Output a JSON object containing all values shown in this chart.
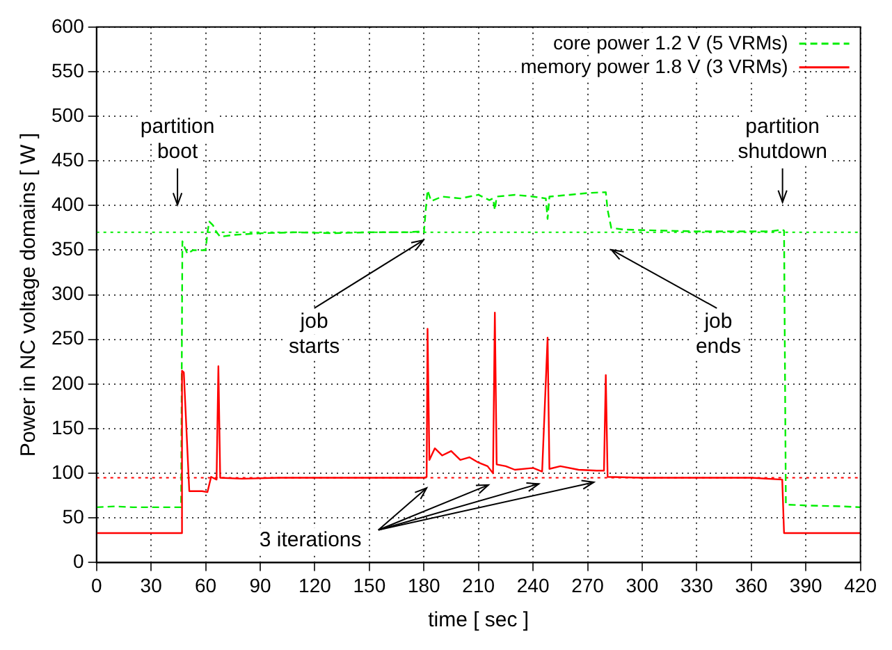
{
  "chart_data": {
    "type": "line",
    "xlabel": "time [ sec ]",
    "ylabel": "Power in NC voltage domains [ W ]",
    "xlim": [
      0,
      420
    ],
    "xticks": [
      0,
      30,
      60,
      90,
      120,
      150,
      180,
      210,
      240,
      270,
      300,
      330,
      360,
      390,
      420
    ],
    "ylim": [
      0,
      600
    ],
    "yticks": [
      0,
      50,
      100,
      150,
      200,
      250,
      300,
      350,
      400,
      450,
      500,
      550,
      600
    ],
    "grid": true,
    "legend": "top right",
    "marker": "none",
    "series": [
      {
        "name": "core power 1.2 V (5 VRMs)",
        "color": "#00ee00",
        "line_style": "dashed",
        "x": [
          0,
          10,
          20,
          30,
          40,
          46.5,
          47.2,
          48,
          50,
          53,
          57,
          60,
          61,
          62,
          64,
          66,
          68,
          75,
          90,
          110,
          130,
          150,
          170,
          179,
          180,
          181,
          182,
          184,
          190,
          200,
          210,
          216,
          218,
          219,
          220,
          230,
          240,
          247,
          248,
          249,
          260,
          270,
          280,
          281,
          283,
          290,
          310,
          330,
          350,
          370,
          377,
          378,
          379,
          390,
          410,
          420
        ],
        "values": [
          62,
          63,
          62,
          62,
          62,
          62,
          360,
          355,
          346,
          350,
          350,
          350,
          370,
          382,
          378,
          370,
          365,
          367,
          369,
          370,
          369,
          370,
          370,
          371,
          370,
          395,
          417,
          405,
          410,
          408,
          412,
          406,
          408,
          395,
          410,
          412,
          410,
          408,
          385,
          410,
          412,
          414,
          415,
          395,
          375,
          373,
          372,
          371,
          371,
          371,
          373,
          372,
          65,
          64,
          63,
          62
        ]
      },
      {
        "name": "memory power 1.8 V (3 VRMs)",
        "color": "#ff0000",
        "line_style": "solid",
        "x": [
          0,
          20,
          40,
          46.5,
          47,
          48,
          51,
          58,
          61,
          63,
          66,
          67,
          68,
          80,
          100,
          120,
          140,
          160,
          180,
          181.5,
          182,
          183,
          186,
          190,
          195,
          200,
          205,
          210,
          215,
          218,
          219,
          220,
          225,
          230,
          240,
          245,
          248,
          249,
          255,
          265,
          275,
          279,
          280,
          281,
          300,
          330,
          360,
          377,
          378,
          400,
          420
        ],
        "values": [
          33,
          33,
          33,
          33,
          215,
          213,
          80,
          80,
          79,
          96,
          93,
          220,
          95,
          94,
          95,
          95,
          95,
          95,
          95,
          96,
          262,
          115,
          128,
          120,
          125,
          115,
          118,
          112,
          108,
          100,
          280,
          110,
          108,
          104,
          106,
          102,
          252,
          105,
          108,
          104,
          103,
          103,
          210,
          96,
          95,
          95,
          95,
          93,
          33,
          33,
          33
        ]
      }
    ],
    "ref_lines": [
      {
        "axis": "y",
        "value": 370,
        "color": "#00ee00",
        "line_style": "dotted"
      },
      {
        "axis": "y",
        "value": 95,
        "color": "#ff0000",
        "line_style": "dotted"
      }
    ],
    "annotations": [
      "partition boot",
      "job starts",
      "job ends",
      "partition shutdown",
      {
        "text": "3 iterations",
        "x": 181.5,
        "y": 96
      }
    ]
  }
}
